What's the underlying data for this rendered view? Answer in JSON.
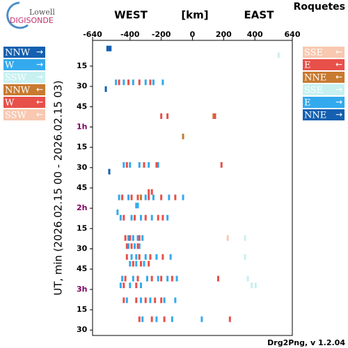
{
  "header": {
    "logo_top": "Lowell",
    "logo_bottom": "DIGISONDE",
    "station": "Roquetes",
    "footer": "Drg2Png, v 1.2.04"
  },
  "chart_data": {
    "type": "drift",
    "x_labels": {
      "west": "WEST",
      "unit": "[km]",
      "east": "EAST"
    },
    "ylabel": "UT, min (2026.02.15 00 - 2026.02.15 03)",
    "xlim": [
      -640,
      640
    ],
    "xticks": [
      -640,
      -400,
      -200,
      0,
      200,
      400,
      640
    ],
    "ylim": [
      -4,
      214
    ],
    "yticks": [
      15,
      30,
      45,
      {
        "value": 60,
        "label": "1h"
      },
      {
        "value": 75,
        "label": "15"
      },
      {
        "value": 90,
        "label": "30"
      },
      {
        "value": 105,
        "label": "45"
      },
      {
        "value": 120,
        "label": "2h"
      },
      {
        "value": 135,
        "label": "15"
      },
      {
        "value": 150,
        "label": "30"
      },
      {
        "value": 165,
        "label": "45"
      },
      {
        "value": 180,
        "label": "3h"
      },
      {
        "value": 195,
        "label": "15"
      },
      {
        "value": 210,
        "label": "30"
      }
    ],
    "series": [
      {
        "name": "NNW",
        "arrow": "→",
        "side": "left",
        "color": "#1560b0",
        "x": [
          -545,
          -535,
          -525,
          -555,
          -533
        ],
        "t": [
          2,
          2,
          2,
          32,
          93
        ]
      },
      {
        "name": "W",
        "arrow": "→",
        "side": "left",
        "color": "#33aaee",
        "x": [
          -490,
          -440,
          -380,
          -300,
          -250,
          -190,
          -440,
          -400,
          -340,
          -280,
          -220,
          -470,
          -410,
          -330,
          -300,
          -250,
          -150,
          -60,
          -360,
          -350,
          -480,
          -460,
          -390,
          -330,
          -260,
          -160,
          -410,
          -380,
          -350,
          -320,
          -410,
          -370,
          -340,
          -390,
          -360,
          -300,
          -230,
          -140,
          -400,
          -360,
          -310,
          -450,
          -380,
          -290,
          -220,
          -160,
          -100,
          -460,
          -400,
          -330,
          -420,
          -330,
          -270,
          -180,
          -110,
          -320,
          -230,
          -130,
          60
        ],
        "t": [
          27,
          27,
          27,
          27,
          27,
          27,
          88,
          88,
          88,
          88,
          88,
          112,
          112,
          112,
          112,
          112,
          112,
          112,
          118,
          118,
          123,
          127,
          127,
          127,
          127,
          127,
          142,
          142,
          142,
          142,
          148,
          148,
          148,
          156,
          156,
          156,
          156,
          156,
          161,
          161,
          161,
          172,
          172,
          172,
          172,
          172,
          172,
          177,
          177,
          177,
          188,
          188,
          188,
          188,
          188,
          202,
          202,
          202,
          202
        ]
      },
      {
        "name": "SSW",
        "arrow": "→",
        "side": "left",
        "color": "#c8f0f0",
        "x": [],
        "t": []
      },
      {
        "name": "NNW",
        "arrow": "←",
        "side": "left",
        "color": "#c87a30",
        "x": [
          -60,
          135,
          -330
        ],
        "t": [
          67,
          52,
          112
        ]
      },
      {
        "name": "W",
        "arrow": "←",
        "side": "left",
        "color": "#e8504a",
        "x": [
          -470,
          -410,
          -340,
          -270,
          -200,
          -160,
          -420,
          -310,
          -230,
          -280,
          -260,
          -450,
          -390,
          -350,
          -280,
          -200,
          -110,
          -440,
          -370,
          -300,
          -220,
          -190,
          -430,
          -400,
          -340,
          -420,
          -390,
          -350,
          -420,
          -340,
          -270,
          -190,
          -380,
          -330,
          -280,
          -430,
          -350,
          -260,
          -200,
          -130,
          -440,
          -360,
          -440,
          -360,
          -300,
          -240,
          -200,
          -340,
          -260,
          -180
        ],
        "t": [
          27,
          27,
          27,
          27,
          52,
          52,
          88,
          88,
          88,
          108,
          108,
          112,
          112,
          112,
          112,
          112,
          112,
          127,
          127,
          127,
          127,
          127,
          142,
          142,
          142,
          148,
          148,
          148,
          156,
          156,
          156,
          156,
          161,
          161,
          161,
          172,
          172,
          172,
          172,
          172,
          177,
          177,
          188,
          188,
          188,
          188,
          188,
          202,
          202,
          202
        ]
      },
      {
        "name": "SSW",
        "arrow": "←",
        "side": "left",
        "color": "#f8c8b0",
        "x": [],
        "t": []
      },
      {
        "name": "SSE",
        "arrow": "←",
        "side": "right",
        "color": "#f8c8b0",
        "x": [
          226
        ],
        "t": [
          142
        ]
      },
      {
        "name": "E",
        "arrow": "←",
        "side": "right",
        "color": "#e8504a",
        "x": [
          145,
          186,
          165,
          240
        ],
        "t": [
          52,
          88,
          172,
          202
        ]
      },
      {
        "name": "NNE",
        "arrow": "←",
        "side": "right",
        "color": "#c87a30",
        "x": [],
        "t": []
      },
      {
        "name": "SSE",
        "arrow": "→",
        "side": "right",
        "color": "#c8f0f0",
        "x": [
          552,
          337,
          337,
          355,
          380,
          405
        ],
        "t": [
          7,
          142,
          156,
          172,
          177,
          177
        ]
      },
      {
        "name": "E",
        "arrow": "→",
        "side": "right",
        "color": "#33aaee",
        "x": [],
        "t": []
      },
      {
        "name": "NNE",
        "arrow": "→",
        "side": "right",
        "color": "#1560b0",
        "x": [],
        "t": []
      }
    ]
  }
}
